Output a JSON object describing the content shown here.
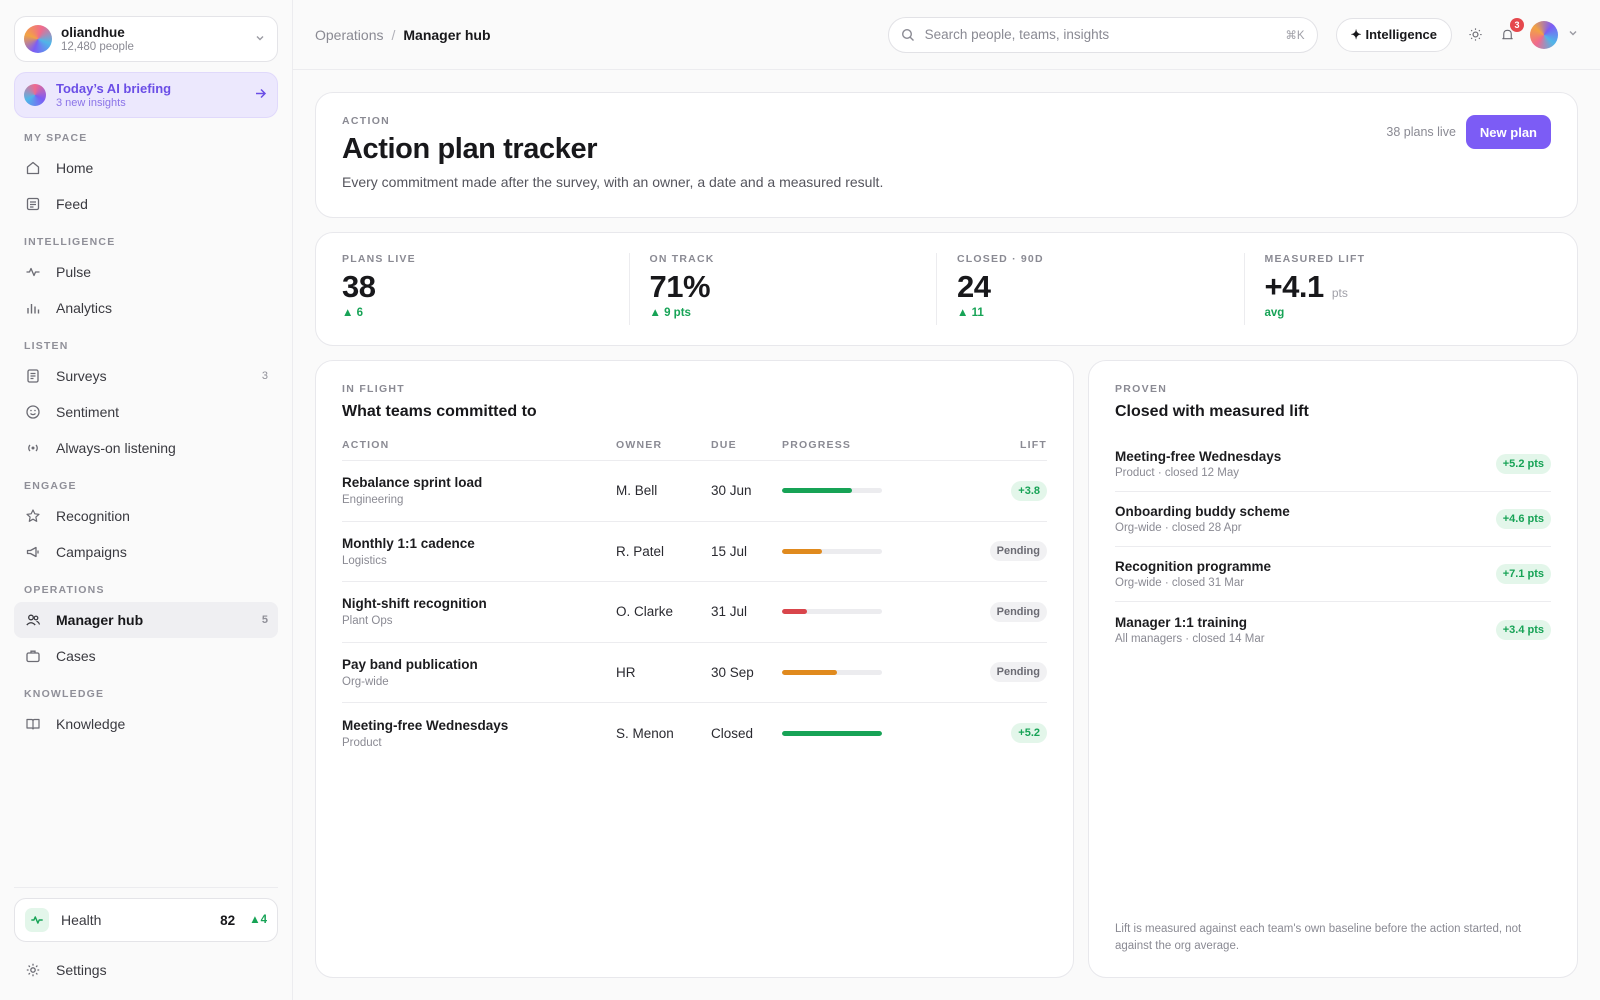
{
  "workspace": {
    "name": "oliandhue",
    "people": "12,480 people"
  },
  "briefing": {
    "title": "Today’s AI briefing",
    "subtitle": "3 new insights"
  },
  "nav": {
    "my_space": {
      "label": "MY SPACE",
      "items": [
        {
          "label": "Home",
          "icon": "home-icon"
        },
        {
          "label": "Feed",
          "icon": "feed-icon"
        }
      ]
    },
    "intelligence": {
      "label": "INTELLIGENCE",
      "items": [
        {
          "label": "Pulse",
          "icon": "pulse-icon"
        },
        {
          "label": "Analytics",
          "icon": "analytics-icon"
        }
      ]
    },
    "listen": {
      "label": "LISTEN",
      "items": [
        {
          "label": "Surveys",
          "icon": "survey-icon",
          "count": "3"
        },
        {
          "label": "Sentiment",
          "icon": "smile-icon"
        },
        {
          "label": "Always-on listening",
          "icon": "broadcast-icon"
        }
      ]
    },
    "engage": {
      "label": "ENGAGE",
      "items": [
        {
          "label": "Recognition",
          "icon": "star-icon"
        },
        {
          "label": "Campaigns",
          "icon": "megaphone-icon"
        }
      ]
    },
    "operations": {
      "label": "OPERATIONS",
      "items": [
        {
          "label": "Manager hub",
          "icon": "users-icon",
          "count": "5",
          "active": true
        },
        {
          "label": "Cases",
          "icon": "briefcase-icon"
        }
      ]
    },
    "knowledge": {
      "label": "KNOWLEDGE",
      "items": [
        {
          "label": "Knowledge",
          "icon": "book-icon"
        }
      ]
    }
  },
  "health": {
    "label": "Health",
    "value": "82",
    "delta": "4"
  },
  "settings": {
    "label": "Settings"
  },
  "breadcrumb": {
    "parent": "Operations",
    "current": "Manager hub"
  },
  "search": {
    "placeholder": "Search people, teams, insights",
    "shortcut": "⌘K"
  },
  "topbar": {
    "intelligence_label": "Intelligence",
    "notification_count": "3"
  },
  "page": {
    "eyebrow": "ACTION",
    "title": "Action plan tracker",
    "description": "Every commitment made after the survey, with an owner, a date and a measured result.",
    "plans_live": "38 plans live",
    "new_plan_label": "New plan"
  },
  "stats": [
    {
      "label": "PLANS LIVE",
      "value": "38",
      "unit": "",
      "delta": "6"
    },
    {
      "label": "ON TRACK",
      "value": "71%",
      "unit": "",
      "delta": "9 pts"
    },
    {
      "label": "CLOSED · 90D",
      "value": "24",
      "unit": "",
      "delta": "11"
    },
    {
      "label": "MEASURED LIFT",
      "value": "+4.1",
      "unit": "pts",
      "delta": "avg"
    }
  ],
  "in_flight": {
    "eyebrow": "IN FLIGHT",
    "title": "What teams committed to",
    "columns": {
      "action": "ACTION",
      "owner": "OWNER",
      "due": "DUE",
      "progress": "PROGRESS",
      "lift": "LIFT"
    },
    "rows": [
      {
        "action": "Rebalance sprint load",
        "team": "Engineering",
        "owner": "M. Bell",
        "due": "30 Jun",
        "progress": 0.7,
        "color": "#17a356",
        "lift": "+3.8",
        "lift_style": "green"
      },
      {
        "action": "Monthly 1:1 cadence",
        "team": "Logistics",
        "owner": "R. Patel",
        "due": "15 Jul",
        "progress": 0.4,
        "color": "#e08a1e",
        "lift": "Pending",
        "lift_style": "grey"
      },
      {
        "action": "Night-shift recognition",
        "team": "Plant Ops",
        "owner": "O. Clarke",
        "due": "31 Jul",
        "progress": 0.25,
        "color": "#d9454b",
        "lift": "Pending",
        "lift_style": "grey"
      },
      {
        "action": "Pay band publication",
        "team": "Org-wide",
        "owner": "HR",
        "due": "30 Sep",
        "progress": 0.55,
        "color": "#e08a1e",
        "lift": "Pending",
        "lift_style": "grey"
      },
      {
        "action": "Meeting-free Wednesdays",
        "team": "Product",
        "owner": "S. Menon",
        "due": "Closed",
        "progress": 1.0,
        "color": "#17a356",
        "lift": "+5.2",
        "lift_style": "green"
      }
    ]
  },
  "proven": {
    "eyebrow": "PROVEN",
    "title": "Closed with measured lift",
    "items": [
      {
        "name": "Meeting-free Wednesdays",
        "meta": "Product · closed 12 May",
        "lift": "+5.2 pts"
      },
      {
        "name": "Onboarding buddy scheme",
        "meta": "Org-wide · closed 28 Apr",
        "lift": "+4.6 pts"
      },
      {
        "name": "Recognition programme",
        "meta": "Org-wide · closed 31 Mar",
        "lift": "+7.1 pts"
      },
      {
        "name": "Manager 1:1 training",
        "meta": "All managers · closed 14 Mar",
        "lift": "+3.4 pts"
      }
    ],
    "note": "Lift is measured against each team's own baseline before the action started, not against the org average."
  },
  "colors": {
    "accent": "#7c5cf5",
    "positive": "#17a356",
    "warning": "#e08a1e",
    "danger": "#d9454b"
  }
}
